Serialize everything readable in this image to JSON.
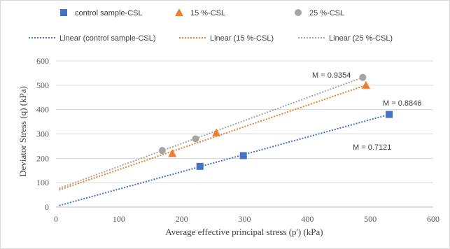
{
  "chart_data": {
    "type": "scatter",
    "xlabel": "Average  effective principal stress (p') (kPa)",
    "ylabel": "Deviator Stress (q) (kPa)",
    "xlim": [
      0,
      600
    ],
    "ylim": [
      0,
      600
    ],
    "xticks": [
      0,
      100,
      200,
      300,
      400,
      500,
      600
    ],
    "yticks": [
      0,
      100,
      200,
      300,
      400,
      500,
      600
    ],
    "grid": "horizontal",
    "legend_position": "top",
    "series": [
      {
        "name": "control sample-CSL",
        "marker": "square",
        "color": "#4472C4",
        "x": [
          229,
          298,
          530
        ],
        "y": [
          167,
          211,
          380
        ],
        "trendline": {
          "name": "Linear (control sample-CSL)",
          "x": [
            5,
            530
          ],
          "y": [
            6,
            380
          ]
        }
      },
      {
        "name": "15 %-CSL",
        "marker": "triangle",
        "color": "#ED7D31",
        "x": [
          185,
          255,
          493
        ],
        "y": [
          220,
          305,
          500
        ],
        "trendline": {
          "name": "Linear (15 %-CSL)",
          "x": [
            5,
            493
          ],
          "y": [
            70,
            500
          ]
        }
      },
      {
        "name": "25 %-CSL",
        "marker": "circle",
        "color": "#A5A5A5",
        "x": [
          169,
          222,
          488
        ],
        "y": [
          232,
          280,
          532
        ],
        "trendline": {
          "name": "Linear (25 %-CSL)",
          "x": [
            5,
            488
          ],
          "y": [
            77,
            532
          ]
        }
      }
    ],
    "annotations": [
      "M = 0.9354",
      "M = 0.8846",
      "M = 0.7121"
    ]
  }
}
